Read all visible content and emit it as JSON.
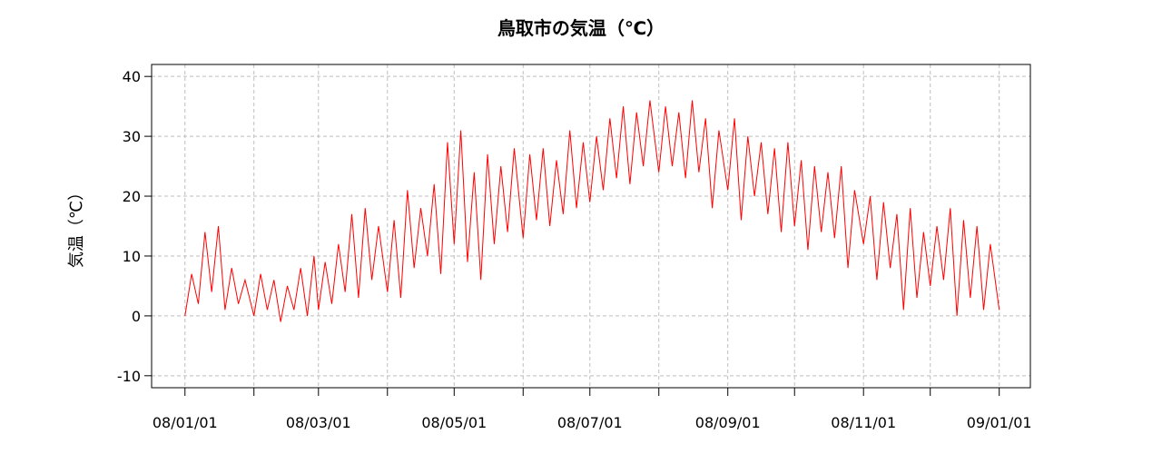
{
  "chart_data": {
    "type": "line",
    "title": "鳥取市の気温（℃）",
    "y_label": "気温（℃）",
    "color": "#ff0000",
    "grid": true,
    "xlim": [
      "07/12/17",
      "09/01/15"
    ],
    "xticks": [
      "08/01/01",
      "08/03/01",
      "08/05/01",
      "08/07/01",
      "08/09/01",
      "08/11/01",
      "09/01/01"
    ],
    "xminorticks": [
      "08/02/01",
      "08/04/01",
      "08/06/01",
      "08/08/01",
      "08/10/01",
      "08/12/01"
    ],
    "ylim": [
      -12,
      42
    ],
    "yticks": [
      -10,
      0,
      10,
      20,
      30,
      40
    ],
    "x": [
      "08/01/01",
      "08/01/04",
      "08/01/07",
      "08/01/10",
      "08/01/13",
      "08/01/16",
      "08/01/19",
      "08/01/22",
      "08/01/25",
      "08/01/28",
      "08/02/01",
      "08/02/04",
      "08/02/07",
      "08/02/10",
      "08/02/13",
      "08/02/16",
      "08/02/19",
      "08/02/22",
      "08/02/25",
      "08/02/28",
      "08/03/01",
      "08/03/04",
      "08/03/07",
      "08/03/10",
      "08/03/13",
      "08/03/16",
      "08/03/19",
      "08/03/22",
      "08/03/25",
      "08/03/28",
      "08/04/01",
      "08/04/04",
      "08/04/07",
      "08/04/10",
      "08/04/13",
      "08/04/16",
      "08/04/19",
      "08/04/22",
      "08/04/25",
      "08/04/28",
      "08/05/01",
      "08/05/04",
      "08/05/07",
      "08/05/10",
      "08/05/13",
      "08/05/16",
      "08/05/19",
      "08/05/22",
      "08/05/25",
      "08/05/28",
      "08/06/01",
      "08/06/04",
      "08/06/07",
      "08/06/10",
      "08/06/13",
      "08/06/16",
      "08/06/19",
      "08/06/22",
      "08/06/25",
      "08/06/28",
      "08/07/01",
      "08/07/04",
      "08/07/07",
      "08/07/10",
      "08/07/13",
      "08/07/16",
      "08/07/19",
      "08/07/22",
      "08/07/25",
      "08/07/28",
      "08/08/01",
      "08/08/04",
      "08/08/07",
      "08/08/10",
      "08/08/13",
      "08/08/16",
      "08/08/19",
      "08/08/22",
      "08/08/25",
      "08/08/28",
      "08/09/01",
      "08/09/04",
      "08/09/07",
      "08/09/10",
      "08/09/13",
      "08/09/16",
      "08/09/19",
      "08/09/22",
      "08/09/25",
      "08/09/28",
      "08/10/01",
      "08/10/04",
      "08/10/07",
      "08/10/10",
      "08/10/13",
      "08/10/16",
      "08/10/19",
      "08/10/22",
      "08/10/25",
      "08/10/28",
      "08/11/01",
      "08/11/04",
      "08/11/07",
      "08/11/10",
      "08/11/13",
      "08/11/16",
      "08/11/19",
      "08/11/22",
      "08/11/25",
      "08/11/28",
      "08/12/01",
      "08/12/04",
      "08/12/07",
      "08/12/10",
      "08/12/13",
      "08/12/16",
      "08/12/19",
      "08/12/22",
      "08/12/25",
      "08/12/28",
      "09/01/01"
    ],
    "values": [
      0,
      7,
      2,
      14,
      4,
      15,
      1,
      8,
      2,
      6,
      0,
      7,
      1,
      6,
      -1,
      5,
      1,
      8,
      0,
      10,
      1,
      9,
      2,
      12,
      4,
      17,
      3,
      18,
      6,
      15,
      4,
      16,
      3,
      21,
      8,
      18,
      10,
      22,
      7,
      29,
      12,
      31,
      9,
      24,
      6,
      27,
      12,
      25,
      14,
      28,
      13,
      27,
      16,
      28,
      15,
      26,
      17,
      31,
      18,
      29,
      19,
      30,
      21,
      33,
      23,
      35,
      22,
      34,
      25,
      36,
      24,
      35,
      25,
      34,
      23,
      36,
      24,
      33,
      18,
      31,
      21,
      33,
      16,
      30,
      20,
      29,
      17,
      28,
      14,
      29,
      15,
      26,
      11,
      25,
      14,
      24,
      13,
      25,
      8,
      21,
      12,
      20,
      6,
      19,
      8,
      17,
      1,
      18,
      3,
      14,
      5,
      15,
      6,
      18,
      0,
      16,
      3,
      15,
      1,
      12,
      1
    ]
  }
}
